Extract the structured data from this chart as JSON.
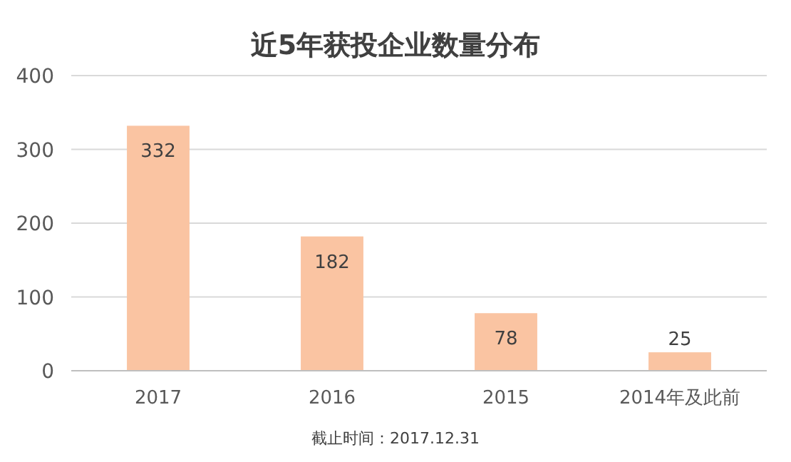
{
  "chart_data": {
    "type": "bar",
    "title": "近5年获投企业数量分布",
    "categories": [
      "2017",
      "2016",
      "2015",
      "2014年及此前"
    ],
    "values": [
      332,
      182,
      78,
      25
    ],
    "color": "#fac4a2",
    "ylim": [
      0,
      400
    ],
    "yticks": [
      0,
      100,
      200,
      300,
      400
    ],
    "grid": "y",
    "data_labels": true,
    "annotations": [
      "截止时间：2017.12.31"
    ]
  }
}
